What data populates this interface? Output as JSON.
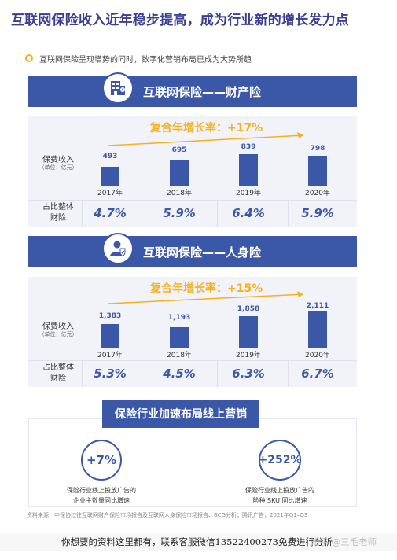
{
  "title": "互联网保险收入近年稳步提高，成为行业新的增长发力点",
  "bullet": "互联网保险呈现增势的同时，数字化营销布局已成为大势所趋",
  "property": {
    "banner_title": "互联网保险——财产险",
    "cagr": "复合年增长率：+17%",
    "premium_label": "保费收入",
    "unit_label": "（单位：亿元）",
    "share_label_1": "占比整体",
    "share_label_2": "财险",
    "icon": "building-icon",
    "years": [
      "2017年",
      "2018年",
      "2019年",
      "2020年"
    ],
    "value_labels": [
      "493",
      "695",
      "839",
      "798"
    ],
    "shares": [
      "4.7%",
      "5.9%",
      "6.4%",
      "5.9%"
    ]
  },
  "life": {
    "banner_title": "互联网保险——人身险",
    "cagr": "复合年增长率：+15%",
    "premium_label": "保费收入",
    "unit_label": "（单位：亿元）",
    "share_label_1": "占比整体",
    "share_label_2": "财险",
    "icon": "person-shield-icon",
    "years": [
      "2017年",
      "2018年",
      "2019年",
      "2020年"
    ],
    "value_labels": [
      "1,383",
      "1,193",
      "1,858",
      "2,111"
    ],
    "shares": [
      "5.3%",
      "4.5%",
      "6.3%",
      "6.7%"
    ]
  },
  "chart_data": [
    {
      "type": "bar",
      "categories": [
        "2017年",
        "2018年",
        "2019年",
        "2020年"
      ],
      "values": [
        493,
        695,
        839,
        798
      ],
      "title": "互联网保险——财产险",
      "ylabel": "保费收入 （单位：亿元）"
    },
    {
      "type": "bar",
      "categories": [
        "2017年",
        "2018年",
        "2019年",
        "2020年"
      ],
      "values": [
        1383,
        1193,
        1858,
        2111
      ],
      "title": "互联网保险——人身险",
      "ylabel": "保费收入 （单位：亿元）"
    }
  ],
  "online": {
    "heading": "保险行业加速布局线上营销",
    "stat1_value": "+7%",
    "stat1_line1": "保险行业线上投放广告的",
    "stat1_line2": "企业主数量同比增速",
    "stat2_value": "+252%",
    "stat2_line1": "保险行业线上投放广告的",
    "stat2_line2": "险种 SKU 同比增速"
  },
  "source": "资料来源：中保协过往互联网财产保险市场报告及互联网人身保险市场报告、BCG分析；腾讯广告，2021年Q1–Q3",
  "footer": "你想要的资料这里都有，联系客服微信13522400273免费进行分析",
  "watermark": "知乎 @三毛老师",
  "colors": {
    "primary": "#3b58a8",
    "accent": "#f5b120",
    "panel": "#f2f3f8"
  }
}
